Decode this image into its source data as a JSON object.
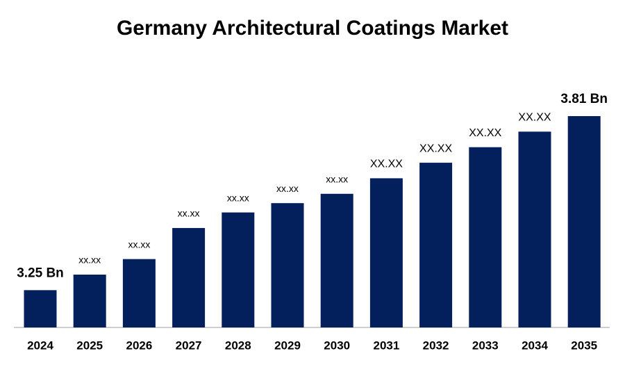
{
  "chart_data": {
    "type": "bar",
    "title": "Germany Architectural Coatings Market",
    "categories": [
      "2024",
      "2025",
      "2026",
      "2027",
      "2028",
      "2029",
      "2030",
      "2031",
      "2032",
      "2033",
      "2034",
      "2035"
    ],
    "values": [
      3.25,
      3.3,
      3.35,
      3.45,
      3.5,
      3.53,
      3.56,
      3.61,
      3.66,
      3.71,
      3.76,
      3.81
    ],
    "value_labels": [
      "3.25 Bn",
      "xx.xx",
      "xx.xx",
      "xx.xx",
      "xx.xx",
      "xx.xx",
      "xx.xx",
      "XX.XX",
      "XX.XX",
      "XX.XX",
      "XX.XX",
      "3.81 Bn"
    ],
    "color": "#03205c",
    "ylim": [
      3.13,
      3.81
    ]
  }
}
